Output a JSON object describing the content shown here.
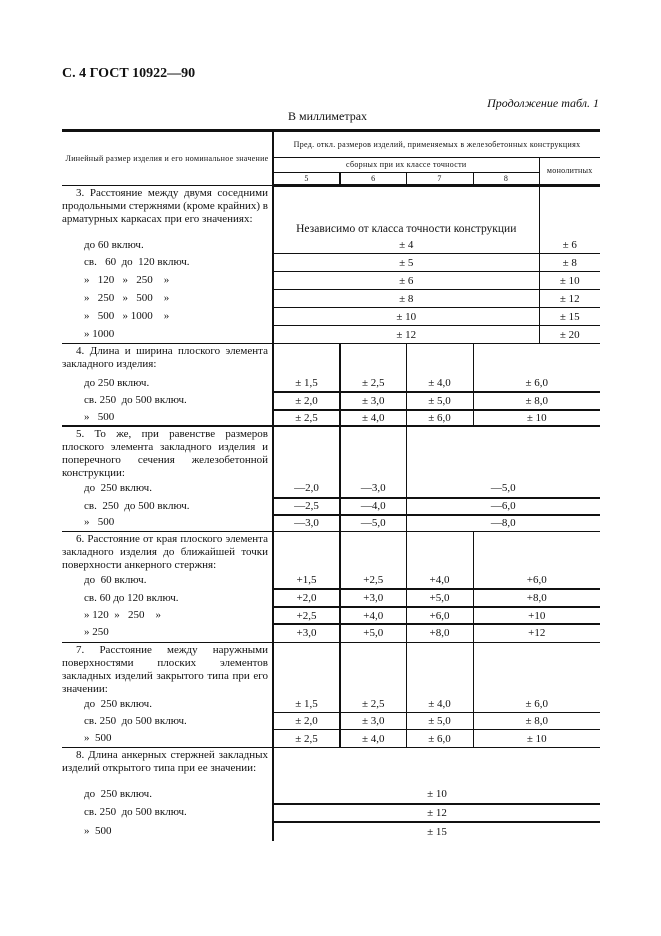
{
  "page_header": {
    "title": "С. 4 ГОСТ 10922—90",
    "continuation": "Продолжение табл. 1",
    "units": "В миллиметрах"
  },
  "table_header": {
    "label_col": "Линейный размер изделия и его номинальное значение",
    "tolerances": "Пред. откл. размеров изделий, применяемых в железобетонных конструкциях",
    "precast": "сборных при их классе точности",
    "monolithic": "монолитных",
    "classes": [
      "5",
      "6",
      "7",
      "8"
    ]
  },
  "sections": [
    {
      "item": "3. Расстояние между двумя соседними продольными стержнями (кроме крайних) в арматурных каркасах при его значениях:",
      "note": "Независимо от класса точности конструкции",
      "rows": [
        {
          "label": "до 60 включ.",
          "values": [
            "± 4",
            "± 6"
          ]
        },
        {
          "label": "св.   60  до  120 включ.",
          "values": [
            "± 5",
            "± 8"
          ]
        },
        {
          "label": "»   120   »   250    »",
          "values": [
            "± 6",
            "± 10"
          ]
        },
        {
          "label": "»   250   »   500    »",
          "values": [
            "± 8",
            "± 12"
          ]
        },
        {
          "label": "»   500   » 1000    »",
          "values": [
            "± 10",
            "± 15"
          ]
        },
        {
          "label": "» 1000",
          "values": [
            "± 12",
            "± 20"
          ]
        }
      ]
    },
    {
      "item": "4. Длина и ширина плоского элемента закладного изделия:",
      "rows": [
        {
          "label": "до 250 включ.",
          "values": [
            "± 1,5",
            "± 2,5",
            "± 4,0",
            "± 6,0"
          ]
        },
        {
          "label": "св. 250  до 500 включ.",
          "values": [
            "± 2,0",
            "± 3,0",
            "± 5,0",
            "± 8,0"
          ]
        },
        {
          "label": "»   500",
          "values": [
            "± 2,5",
            "± 4,0",
            "± 6,0",
            "± 10"
          ]
        }
      ]
    },
    {
      "item": "5. То же, при равенстве размеров плоского элемента закладного изделия и поперечного сечения железобетонной конструкции:",
      "rows": [
        {
          "label": "до  250 включ.",
          "values": [
            "—2,0",
            "—3,0",
            "—5,0"
          ]
        },
        {
          "label": "св.  250  до 500 включ.",
          "values": [
            "—2,5",
            "—4,0",
            "—6,0"
          ]
        },
        {
          "label": "»   500",
          "values": [
            "—3,0",
            "—5,0",
            "—8,0"
          ]
        }
      ]
    },
    {
      "item": "6. Расстояние от края плоского элемента закладного изделия до ближайшей точки поверхности анкерного стержня:",
      "rows": [
        {
          "label": "до  60 включ.",
          "values": [
            "+1,5",
            "+2,5",
            "+4,0",
            "+6,0"
          ]
        },
        {
          "label": "св. 60 до 120 включ.",
          "values": [
            "+2,0",
            "+3,0",
            "+5,0",
            "+8,0"
          ]
        },
        {
          "label": "» 120  »   250    »",
          "values": [
            "+2,5",
            "+4,0",
            "+6,0",
            "+10"
          ]
        },
        {
          "label": "» 250",
          "values": [
            "+3,0",
            "+5,0",
            "+8,0",
            "+12"
          ]
        }
      ]
    },
    {
      "item": "7. Расстояние между наружными поверхностями плоских элементов закладных изделий закрытого типа при его значении:",
      "rows": [
        {
          "label": "до  250 включ.",
          "values": [
            "± 1,5",
            "± 2,5",
            "± 4,0",
            "± 6,0"
          ]
        },
        {
          "label": "св. 250  до 500 включ.",
          "values": [
            "± 2,0",
            "± 3,0",
            "± 5,0",
            "± 8,0"
          ]
        },
        {
          "label": "»  500",
          "values": [
            "± 2,5",
            "± 4,0",
            "± 6,0",
            "± 10"
          ]
        }
      ]
    },
    {
      "item": "8. Длина анкерных стержней закладных изделий открытого типа при ее значении:",
      "rows": [
        {
          "label": "до  250 включ.",
          "values": [
            "± 10"
          ]
        },
        {
          "label": "св. 250  до 500 включ.",
          "values": [
            "± 12"
          ]
        },
        {
          "label": "»  500",
          "values": [
            "± 15"
          ]
        }
      ]
    }
  ]
}
